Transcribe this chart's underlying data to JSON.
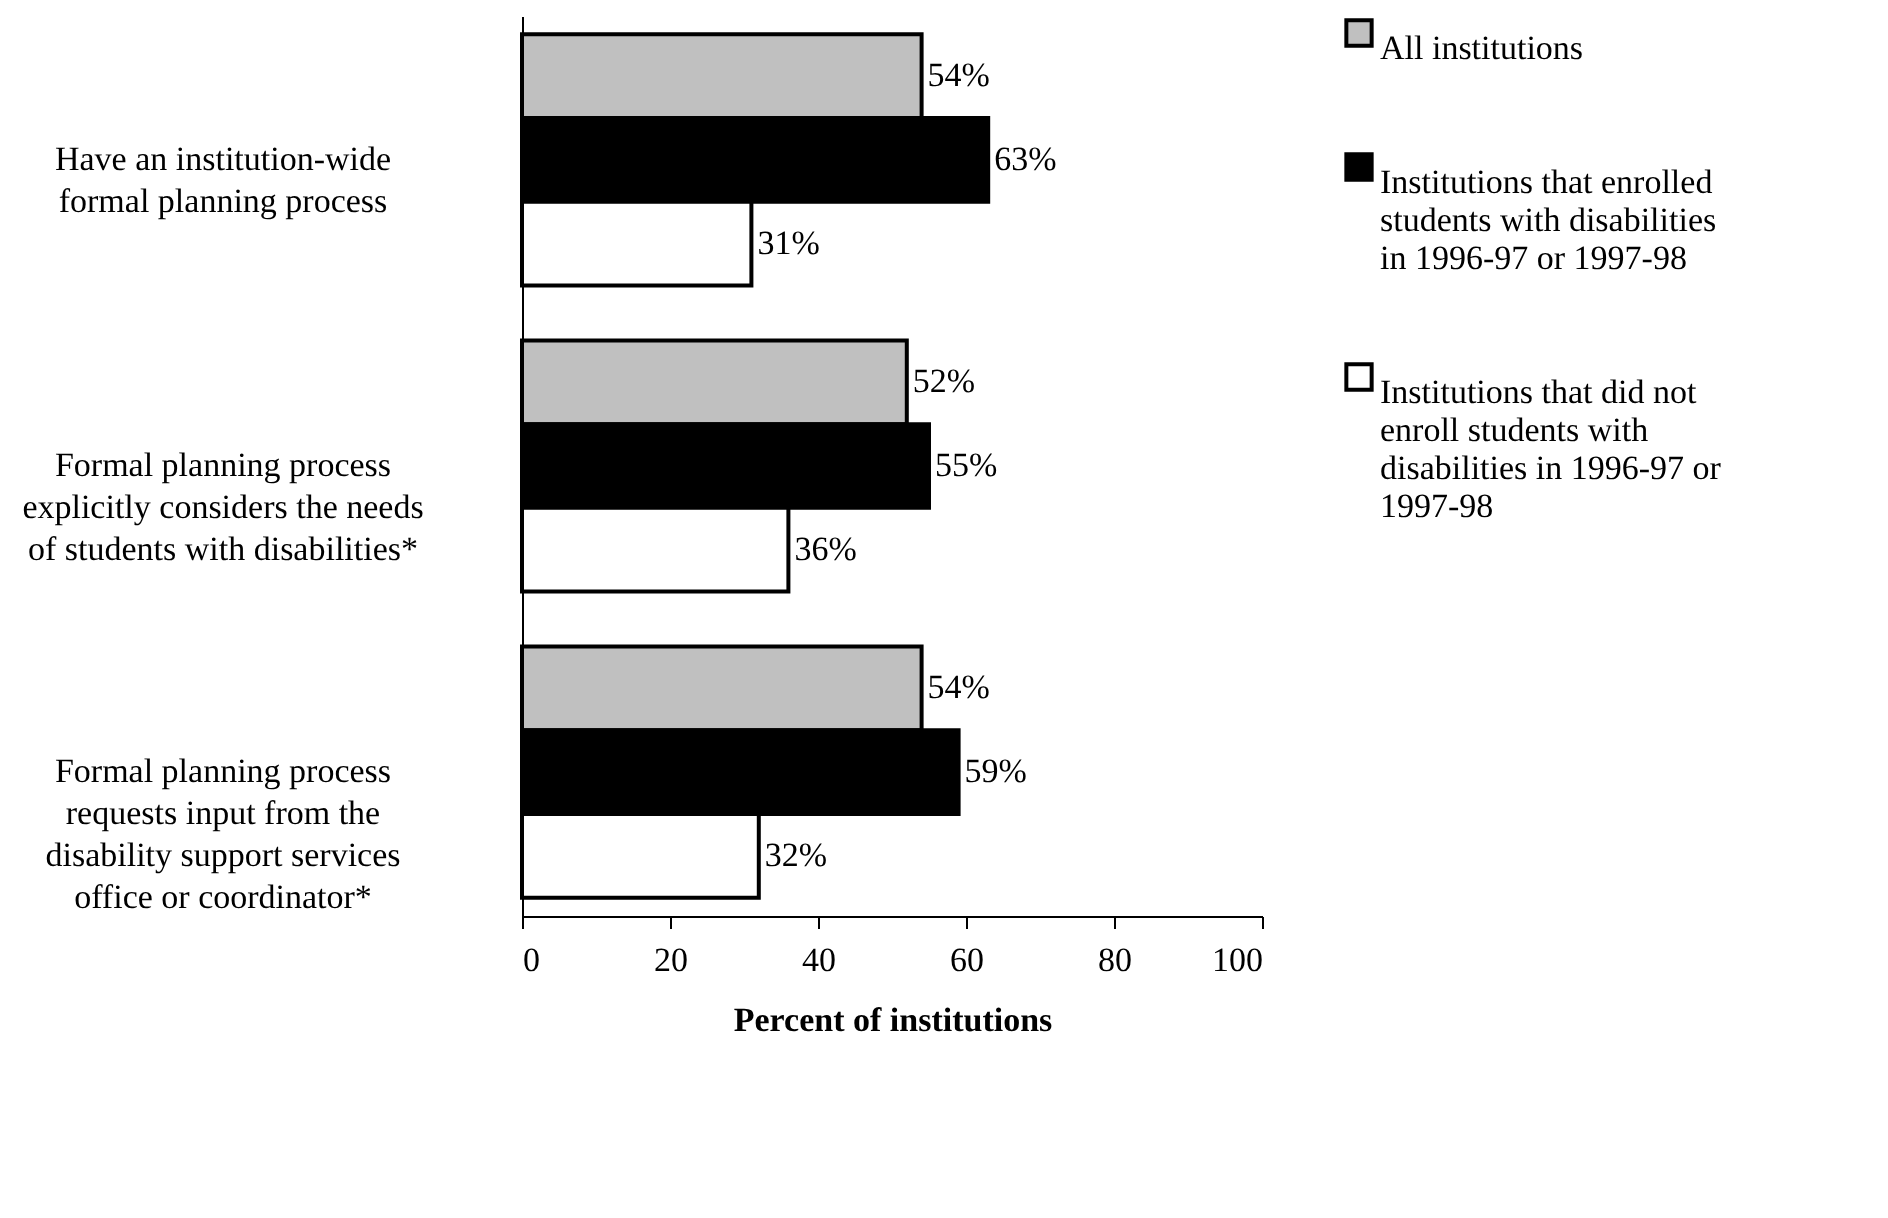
{
  "chart_data": {
    "type": "bar",
    "orientation": "horizontal",
    "xlabel": "Percent of institutions",
    "categories": [
      "Have an institution-wide formal planning process",
      "Formal planning process explicitly considers the needs of students with disabilities*",
      "Formal planning process requests input from the disability support services office or coordinator*"
    ],
    "series": [
      {
        "name": "All institutions",
        "color": "#c0c0c0",
        "values": [
          54,
          52,
          54
        ],
        "value_labels": [
          "54%",
          "52%",
          "54%"
        ]
      },
      {
        "name": "Institutions that enrolled students with disabilities in 1996-97 or 1997-98",
        "color": "#000000",
        "values": [
          63,
          55,
          59
        ],
        "value_labels": [
          "63%",
          "55%",
          "59%"
        ]
      },
      {
        "name": "Institutions that did not enroll students with disabilities in 1996-97 or 1997-98",
        "color": "#ffffff",
        "values": [
          31,
          36,
          32
        ],
        "value_labels": [
          "31%",
          "36%",
          "32%"
        ]
      }
    ],
    "xlim": [
      0,
      100
    ],
    "xticks": [
      0,
      20,
      40,
      60,
      80,
      100
    ],
    "grid": false,
    "legend": "right"
  }
}
